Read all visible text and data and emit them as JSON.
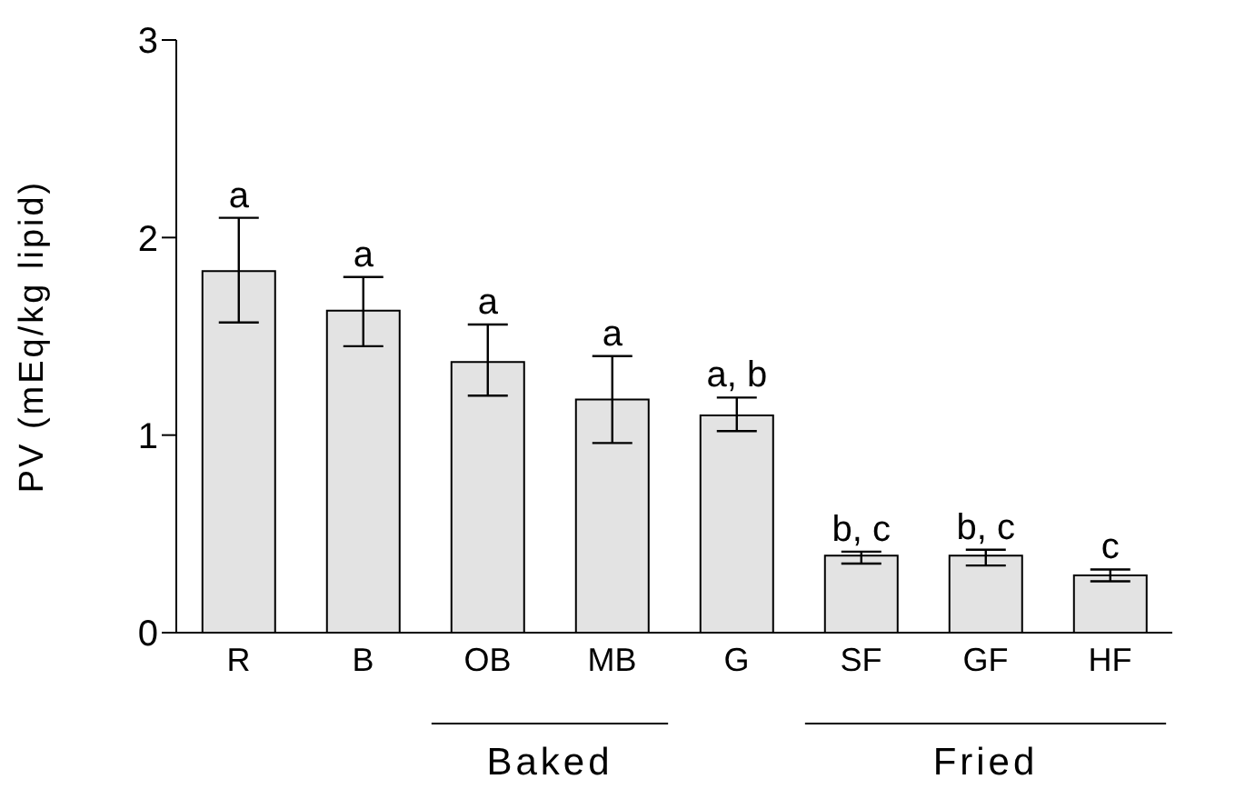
{
  "chart_data": {
    "type": "bar",
    "ylabel": "PV (mEq/kg lipid)",
    "categories": [
      "R",
      "B",
      "OB",
      "MB",
      "G",
      "SF",
      "GF",
      "HF"
    ],
    "values": [
      1.83,
      1.63,
      1.37,
      1.18,
      1.1,
      0.39,
      0.39,
      0.29
    ],
    "errors": [
      [
        1.57,
        2.1
      ],
      [
        1.45,
        1.8
      ],
      [
        1.2,
        1.56
      ],
      [
        0.96,
        1.4
      ],
      [
        1.02,
        1.19
      ],
      [
        0.35,
        0.41
      ],
      [
        0.34,
        0.42
      ],
      [
        0.26,
        0.32
      ]
    ],
    "value_labels": [
      "a",
      "a",
      "a",
      "a",
      "a, b",
      "b, c",
      "b, c",
      "c"
    ],
    "color": "#e3e3e3",
    "ylim": [
      0,
      3
    ],
    "yticks": [
      0,
      1,
      2,
      3
    ],
    "grid": false,
    "legend": false,
    "annotations": [
      "Baked",
      "Fried"
    ]
  }
}
